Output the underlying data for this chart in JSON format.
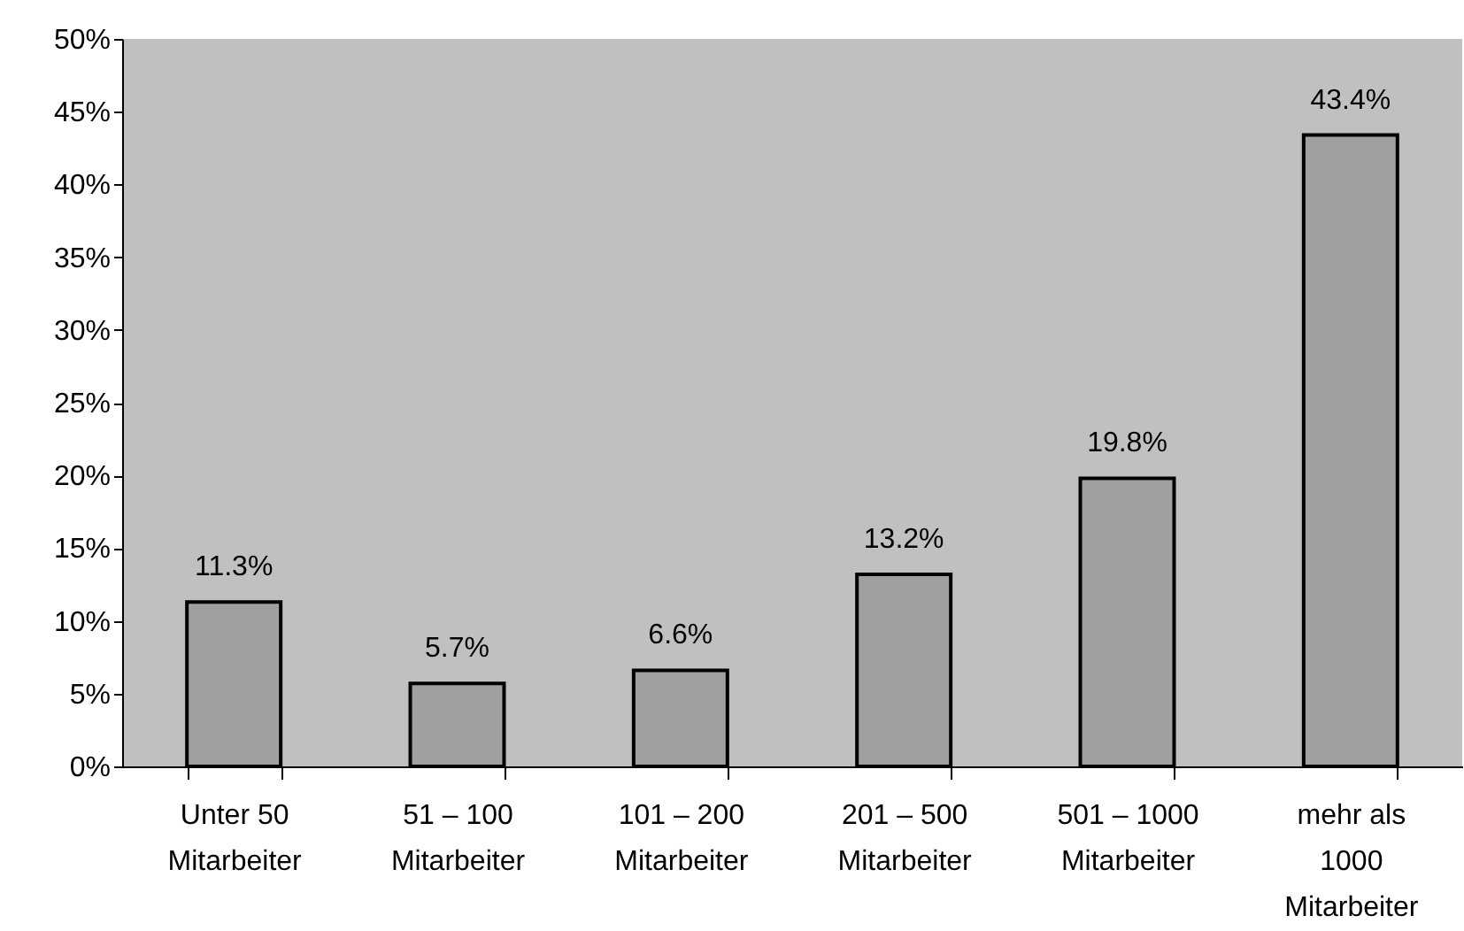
{
  "chart_data": {
    "type": "bar",
    "categories": [
      "Unter 50\nMitarbeiter",
      "51 – 100\nMitarbeiter",
      "101 – 200\nMitarbeiter",
      "201 – 500\nMitarbeiter",
      "501 – 1000\nMitarbeiter",
      "mehr als\n1000\nMitarbeiter"
    ],
    "values": [
      11.3,
      5.7,
      6.6,
      13.2,
      19.8,
      43.4
    ],
    "value_labels": [
      "11.3%",
      "5.7%",
      "6.6%",
      "13.2%",
      "19.8%",
      "43.4%"
    ],
    "color": "#a0a0a0",
    "ylim": [
      0,
      50
    ],
    "yticks": [
      {
        "value": 0,
        "label": "0%"
      },
      {
        "value": 5,
        "label": "5%"
      },
      {
        "value": 10,
        "label": "10%"
      },
      {
        "value": 15,
        "label": "15%"
      },
      {
        "value": 20,
        "label": "20%"
      },
      {
        "value": 25,
        "label": "25%"
      },
      {
        "value": 30,
        "label": "30%"
      },
      {
        "value": 35,
        "label": "35%"
      },
      {
        "value": 40,
        "label": "40%"
      },
      {
        "value": 45,
        "label": "45%"
      },
      {
        "value": 50,
        "label": "50%"
      }
    ],
    "grid": false
  }
}
